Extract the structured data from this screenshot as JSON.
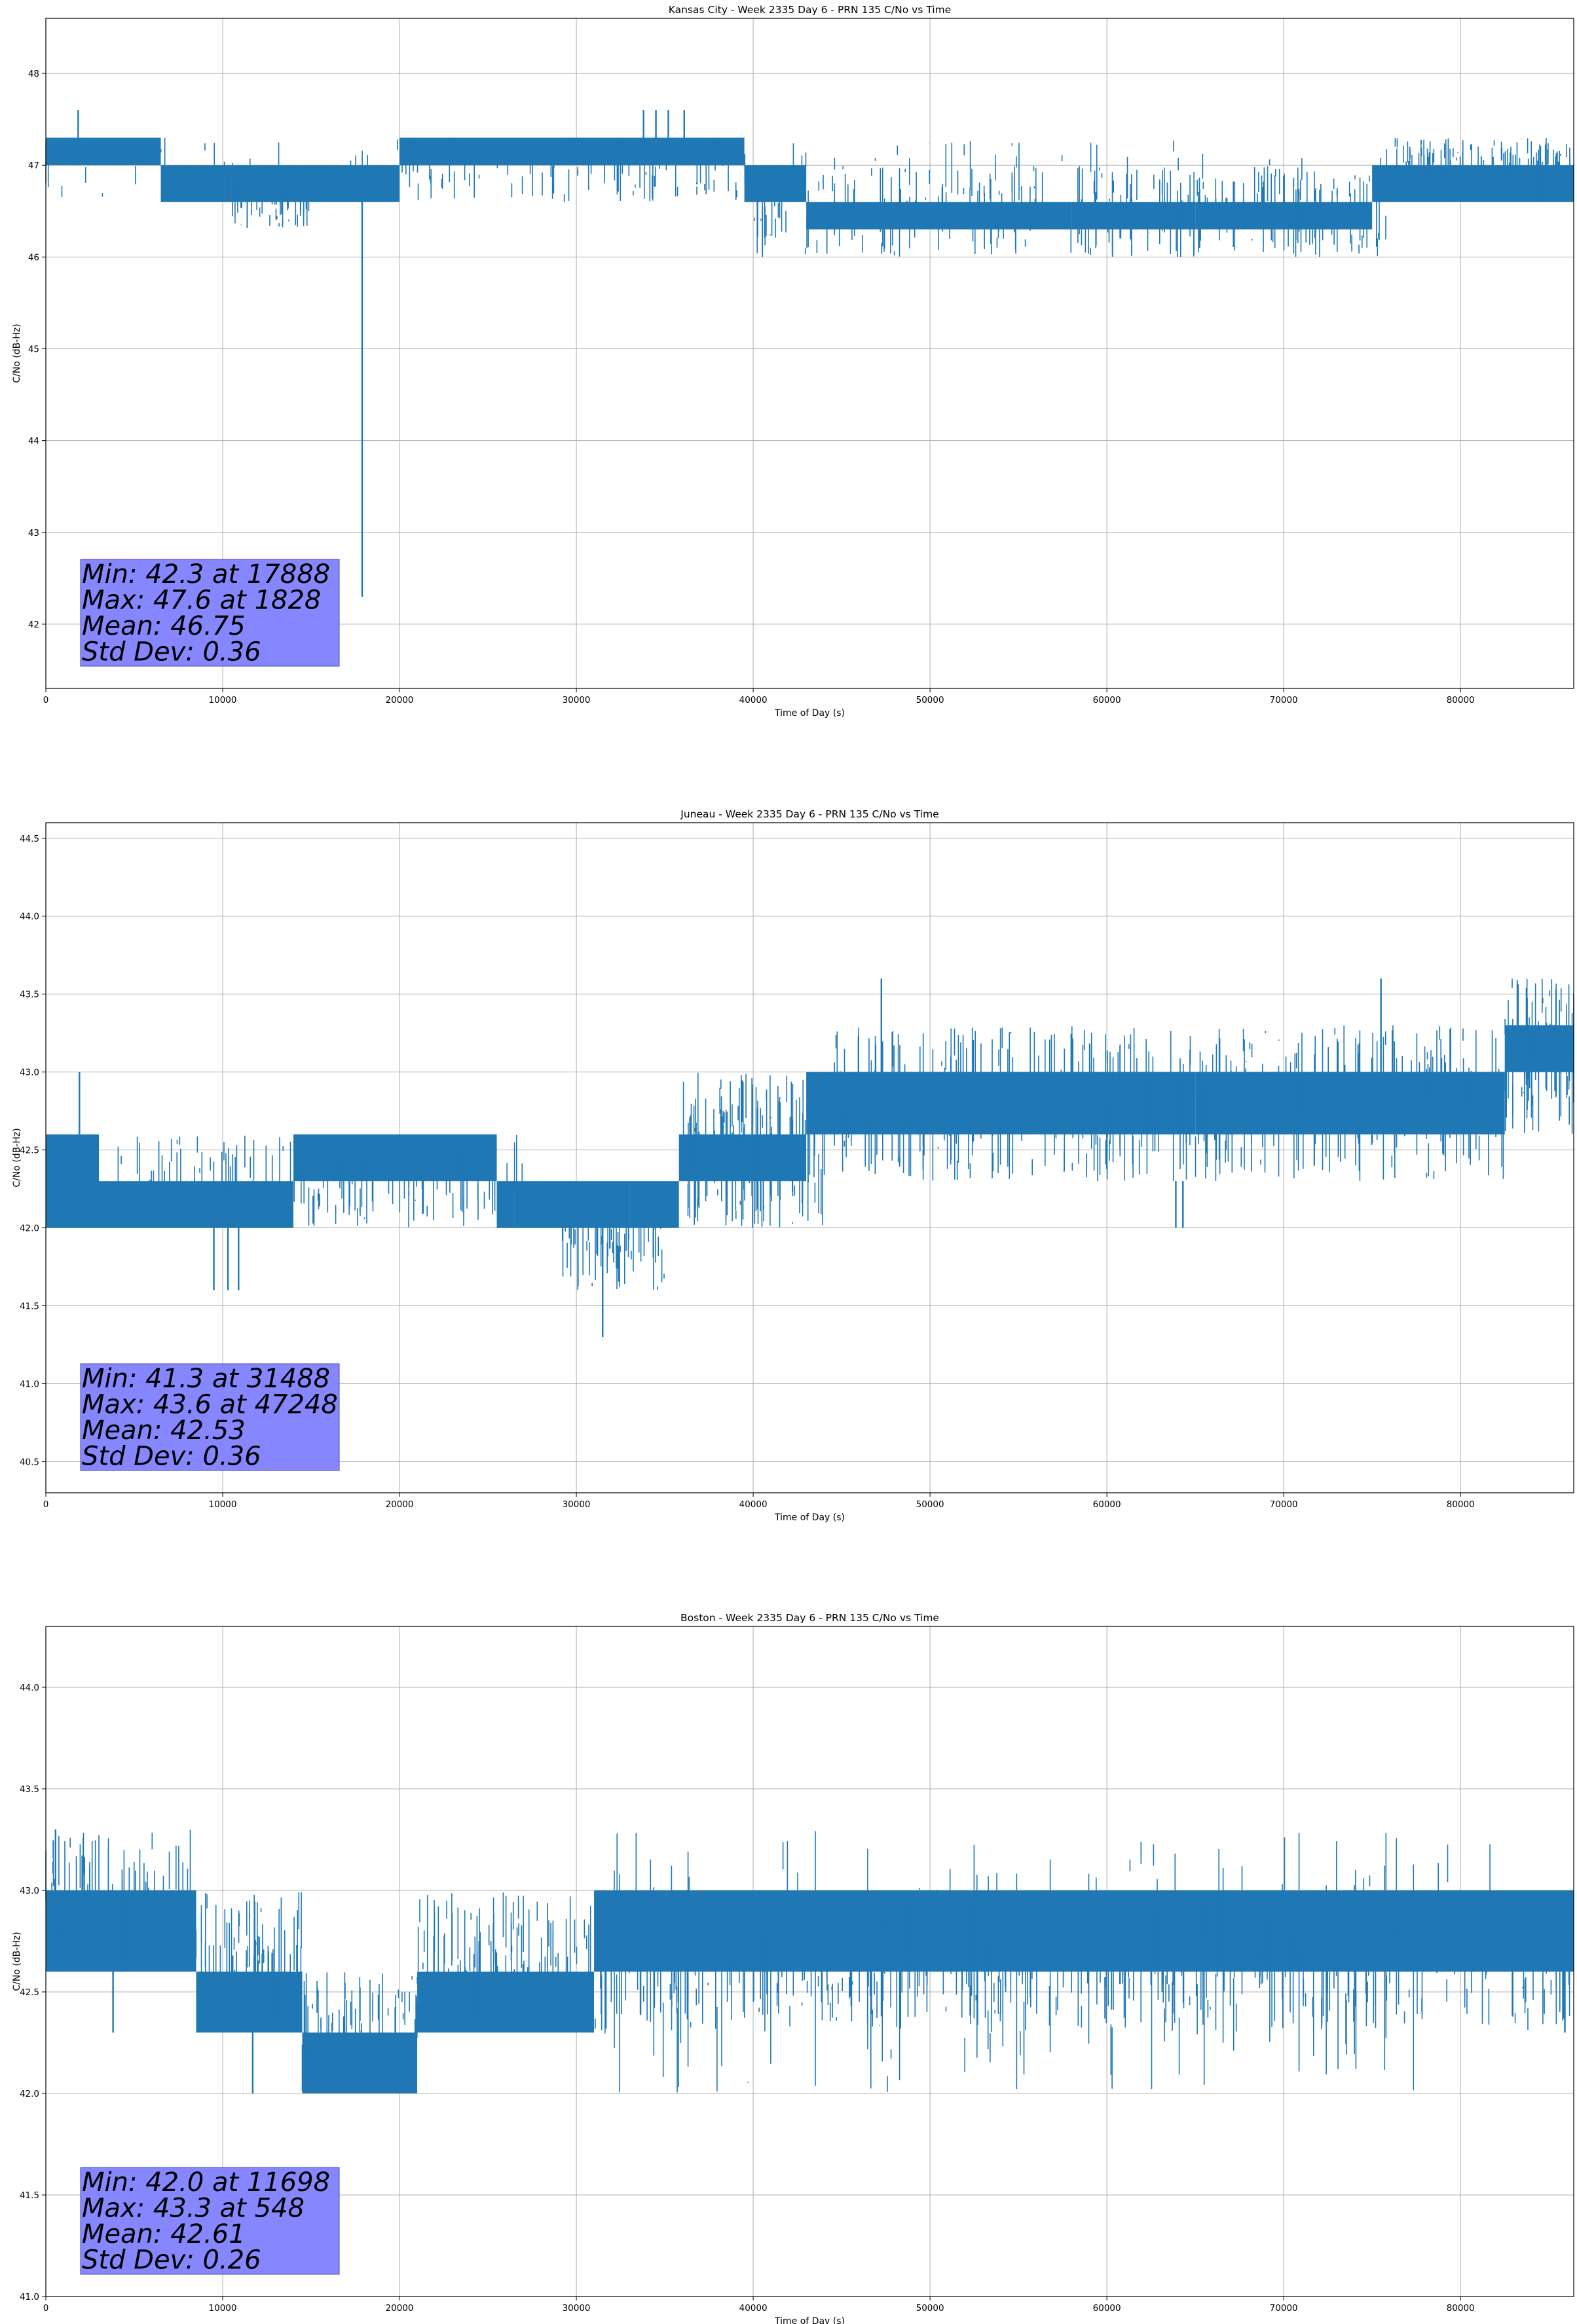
{
  "chart_data": [
    {
      "type": "line",
      "title": "Kansas City - Week 2335 Day 6 - PRN 135 C/No vs Time",
      "xlabel": "Time of Day (s)",
      "ylabel": "C/No (dB-Hz)",
      "xlim": [
        0,
        86400
      ],
      "ylim": [
        41.3,
        48.6
      ],
      "grid": true,
      "xticks": [
        0,
        10000,
        20000,
        30000,
        40000,
        50000,
        60000,
        70000,
        80000
      ],
      "xtick_labels": [
        "0",
        "10000",
        "20000",
        "30000",
        "40000",
        "50000",
        "60000",
        "70000",
        "80000"
      ],
      "yticks": [
        42,
        43,
        44,
        45,
        46,
        47,
        48
      ],
      "ytick_labels": [
        "42",
        "43",
        "44",
        "45",
        "46",
        "47",
        "48"
      ],
      "color": "#1f77b4",
      "series": [
        {
          "name": "PRN 135 C/No",
          "segments": [
            {
              "x": [
                0,
                6500
              ],
              "low": 47.0,
              "high": 47.3
            },
            {
              "x": [
                6500,
                10500
              ],
              "low": 46.6,
              "high": 47.0
            },
            {
              "x": [
                10500,
                14500
              ],
              "low": 46.6,
              "high": 47.0
            },
            {
              "x": [
                14500,
                20000
              ],
              "low": 46.6,
              "high": 47.0
            },
            {
              "x": [
                20000,
                39500
              ],
              "low": 47.0,
              "high": 47.3
            },
            {
              "x": [
                39500,
                43000
              ],
              "low": 46.6,
              "high": 47.0
            },
            {
              "x": [
                43000,
                58000
              ],
              "low": 46.3,
              "high": 46.6
            },
            {
              "x": [
                58000,
                65000
              ],
              "low": 46.3,
              "high": 46.6
            },
            {
              "x": [
                65000,
                75000
              ],
              "low": 46.3,
              "high": 46.6
            },
            {
              "x": [
                75000,
                86400
              ],
              "low": 46.6,
              "high": 47.0
            }
          ],
          "noise_ranges": [
            {
              "x": [
                0,
                86400
              ],
              "min": 46.6,
              "max": 47.3,
              "count": 110
            },
            {
              "x": [
                10500,
                15000
              ],
              "min": 46.3,
              "max": 47.0,
              "count": 60
            },
            {
              "x": [
                20000,
                40000
              ],
              "min": 46.6,
              "max": 47.3,
              "count": 70
            },
            {
              "x": [
                40000,
                76000
              ],
              "min": 46.0,
              "max": 47.0,
              "count": 240
            },
            {
              "x": [
                76000,
                86400
              ],
              "min": 46.6,
              "max": 47.3,
              "count": 120
            }
          ],
          "spikes": [
            {
              "x": 17888,
              "low": 42.3,
              "high": 47.0
            },
            {
              "x": 1828,
              "low": 47.0,
              "high": 47.6
            },
            {
              "x": 33800,
              "low": 47.0,
              "high": 47.6
            },
            {
              "x": 34500,
              "low": 47.0,
              "high": 47.6
            },
            {
              "x": 35200,
              "low": 47.0,
              "high": 47.6
            },
            {
              "x": 36100,
              "low": 47.0,
              "high": 47.6
            }
          ]
        }
      ],
      "stats": {
        "lines": [
          "Min: 42.3 at 17888",
          "Max: 47.6 at 1828",
          "Mean: 46.75",
          "Std Dev: 0.36"
        ],
        "box_color": "#8080ff",
        "position": "bottom-left"
      }
    },
    {
      "type": "line",
      "title": "Juneau - Week 2335 Day 6 - PRN 135 C/No vs Time",
      "xlabel": "Time of Day (s)",
      "ylabel": "C/No (dB-Hz)",
      "xlim": [
        0,
        86400
      ],
      "ylim": [
        40.3,
        44.6
      ],
      "grid": true,
      "xticks": [
        0,
        10000,
        20000,
        30000,
        40000,
        50000,
        60000,
        70000,
        80000
      ],
      "xtick_labels": [
        "0",
        "10000",
        "20000",
        "30000",
        "40000",
        "50000",
        "60000",
        "70000",
        "80000"
      ],
      "yticks": [
        40.5,
        41.0,
        41.5,
        42.0,
        42.5,
        43.0,
        43.5,
        44.0,
        44.5
      ],
      "ytick_labels": [
        "40.5",
        "41.0",
        "41.5",
        "42.0",
        "42.5",
        "43.0",
        "43.5",
        "44.0",
        "44.5"
      ],
      "color": "#1f77b4",
      "series": [
        {
          "name": "PRN 135 C/No",
          "segments": [
            {
              "x": [
                0,
                3000
              ],
              "low": 42.0,
              "high": 42.6
            },
            {
              "x": [
                3000,
                6500
              ],
              "low": 42.0,
              "high": 42.3
            },
            {
              "x": [
                6500,
                14000
              ],
              "low": 42.0,
              "high": 42.3
            },
            {
              "x": [
                14000,
                25500
              ],
              "low": 42.3,
              "high": 42.6
            },
            {
              "x": [
                25500,
                26500
              ],
              "low": 42.0,
              "high": 42.3
            },
            {
              "x": [
                26500,
                33000
              ],
              "low": 42.0,
              "high": 42.3
            },
            {
              "x": [
                33000,
                35800
              ],
              "low": 42.0,
              "high": 42.3
            },
            {
              "x": [
                35800,
                43000
              ],
              "low": 42.3,
              "high": 42.6
            },
            {
              "x": [
                43000,
                65000
              ],
              "low": 42.6,
              "high": 43.0
            },
            {
              "x": [
                65000,
                82500
              ],
              "low": 42.6,
              "high": 43.0
            },
            {
              "x": [
                82500,
                86400
              ],
              "low": 43.0,
              "high": 43.3
            }
          ],
          "noise_ranges": [
            {
              "x": [
                0,
                14000
              ],
              "min": 42.0,
              "max": 42.6,
              "count": 80
            },
            {
              "x": [
                14000,
                27000
              ],
              "min": 42.0,
              "max": 42.6,
              "count": 90
            },
            {
              "x": [
                29000,
                35000
              ],
              "min": 41.6,
              "max": 42.3,
              "count": 70
            },
            {
              "x": [
                36000,
                44000
              ],
              "min": 42.0,
              "max": 43.0,
              "count": 110
            },
            {
              "x": [
                44000,
                83000
              ],
              "min": 42.3,
              "max": 43.3,
              "count": 320
            },
            {
              "x": [
                82500,
                86400
              ],
              "min": 42.6,
              "max": 43.6,
              "count": 60
            }
          ],
          "spikes": [
            {
              "x": 31488,
              "low": 41.3,
              "high": 42.0
            },
            {
              "x": 47248,
              "low": 43.0,
              "high": 43.6
            },
            {
              "x": 1900,
              "low": 42.6,
              "high": 43.0
            },
            {
              "x": 9500,
              "low": 41.6,
              "high": 42.0
            },
            {
              "x": 10300,
              "low": 41.6,
              "high": 42.0
            },
            {
              "x": 10900,
              "low": 41.6,
              "high": 42.0
            },
            {
              "x": 63900,
              "low": 42.0,
              "high": 42.3
            },
            {
              "x": 64300,
              "low": 42.0,
              "high": 42.3
            },
            {
              "x": 75500,
              "low": 43.0,
              "high": 43.6
            }
          ]
        }
      ],
      "stats": {
        "lines": [
          "Min: 41.3 at 31488",
          "Max: 43.6 at 47248",
          "Mean: 42.53",
          "Std Dev: 0.36"
        ],
        "box_color": "#8080ff",
        "position": "bottom-left"
      }
    },
    {
      "type": "line",
      "title": "Boston - Week 2335 Day 6 - PRN 135 C/No vs Time",
      "xlabel": "Time of Day (s)",
      "ylabel": "C/No (dB-Hz)",
      "xlim": [
        0,
        86400
      ],
      "ylim": [
        41.0,
        44.3
      ],
      "grid": true,
      "xticks": [
        0,
        10000,
        20000,
        30000,
        40000,
        50000,
        60000,
        70000,
        80000
      ],
      "xtick_labels": [
        "0",
        "10000",
        "20000",
        "30000",
        "40000",
        "50000",
        "60000",
        "70000",
        "80000"
      ],
      "yticks": [
        41.0,
        41.5,
        42.0,
        42.5,
        43.0,
        43.5,
        44.0
      ],
      "ytick_labels": [
        "41.0",
        "41.5",
        "42.0",
        "42.5",
        "43.0",
        "43.5",
        "44.0"
      ],
      "color": "#1f77b4",
      "series": [
        {
          "name": "PRN 135 C/No",
          "segments": [
            {
              "x": [
                0,
                8500
              ],
              "low": 42.6,
              "high": 43.0
            },
            {
              "x": [
                8500,
                14500
              ],
              "low": 42.3,
              "high": 42.6
            },
            {
              "x": [
                14500,
                21000
              ],
              "low": 42.0,
              "high": 42.3
            },
            {
              "x": [
                21000,
                31000
              ],
              "low": 42.3,
              "high": 42.6
            },
            {
              "x": [
                31000,
                86400
              ],
              "low": 42.6,
              "high": 43.0
            }
          ],
          "noise_ranges": [
            {
              "x": [
                0,
                8500
              ],
              "min": 42.6,
              "max": 43.3,
              "count": 70
            },
            {
              "x": [
                8500,
                14500
              ],
              "min": 42.3,
              "max": 43.0,
              "count": 60
            },
            {
              "x": [
                14500,
                21000
              ],
              "min": 42.0,
              "max": 42.6,
              "count": 60
            },
            {
              "x": [
                21000,
                31000
              ],
              "min": 42.3,
              "max": 43.0,
              "count": 90
            },
            {
              "x": [
                31000,
                86400
              ],
              "min": 42.3,
              "max": 43.0,
              "count": 420
            },
            {
              "x": [
                31000,
                86400
              ],
              "min": 42.0,
              "max": 43.3,
              "count": 120
            }
          ],
          "spikes": [
            {
              "x": 11698,
              "low": 42.0,
              "high": 42.3
            },
            {
              "x": 548,
              "low": 43.0,
              "high": 43.3
            },
            {
              "x": 3800,
              "low": 42.3,
              "high": 42.6
            },
            {
              "x": 85900,
              "low": 42.3,
              "high": 42.6
            }
          ]
        }
      ],
      "stats": {
        "lines": [
          "Min: 42.0 at 11698",
          "Max: 43.3 at 548",
          "Mean: 42.61",
          "Std Dev: 0.26"
        ],
        "box_color": "#8080ff",
        "position": "bottom-left"
      }
    }
  ]
}
